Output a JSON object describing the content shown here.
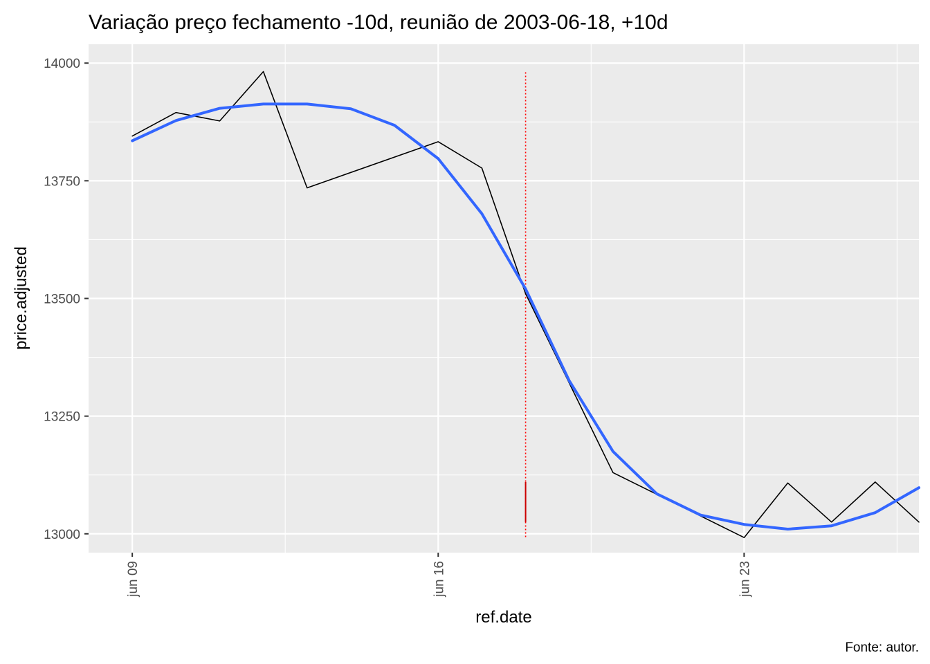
{
  "chart_data": {
    "type": "line",
    "title": "Variação preço fechamento -10d, reunião de 2003-06-18, +10d",
    "xlabel": "ref.date",
    "ylabel": "price.adjusted",
    "caption": "Fonte: autor.",
    "x_ticks": [
      {
        "label": "jun 09",
        "date": "2003-06-09"
      },
      {
        "label": "jun 16",
        "date": "2003-06-16"
      },
      {
        "label": "jun 23",
        "date": "2003-06-23"
      }
    ],
    "y_ticks": [
      13000,
      13250,
      13500,
      13750,
      14000
    ],
    "xlim": [
      "2003-06-08",
      "2003-06-27"
    ],
    "ylim": [
      12960,
      14040
    ],
    "grid": true,
    "series": [
      {
        "color": "#000000",
        "x": [
          "2003-06-09",
          "2003-06-10",
          "2003-06-11",
          "2003-06-12",
          "2003-06-13",
          "2003-06-16",
          "2003-06-17",
          "2003-06-18",
          "2003-06-20",
          "2003-06-23",
          "2003-06-24",
          "2003-06-25",
          "2003-06-26",
          "2003-06-27"
        ],
        "y": [
          13845,
          13895,
          13877,
          13982,
          13735,
          13833,
          13777,
          13510,
          13130,
          12992,
          13108,
          13025,
          13110,
          13025
        ]
      },
      {
        "color": "#3366FF",
        "x": [
          "2003-06-09",
          "2003-06-10",
          "2003-06-11",
          "2003-06-12",
          "2003-06-13",
          "2003-06-14",
          "2003-06-15",
          "2003-06-16",
          "2003-06-17",
          "2003-06-18",
          "2003-06-19",
          "2003-06-20",
          "2003-06-21",
          "2003-06-22",
          "2003-06-23",
          "2003-06-24",
          "2003-06-25",
          "2003-06-26",
          "2003-06-27"
        ],
        "y": [
          13835,
          13878,
          13904,
          13913,
          13913,
          13903,
          13868,
          13797,
          13680,
          13520,
          13325,
          13175,
          13085,
          13040,
          13020,
          13010,
          13017,
          13045,
          13098
        ]
      }
    ],
    "vline": {
      "date": "2003-06-18",
      "y_range": [
        12993,
        13983
      ],
      "color": "#FF0000"
    },
    "vline_segment": {
      "date": "2003-06-18",
      "y_range": [
        13025,
        13110
      ],
      "color": "#CC0000"
    }
  }
}
